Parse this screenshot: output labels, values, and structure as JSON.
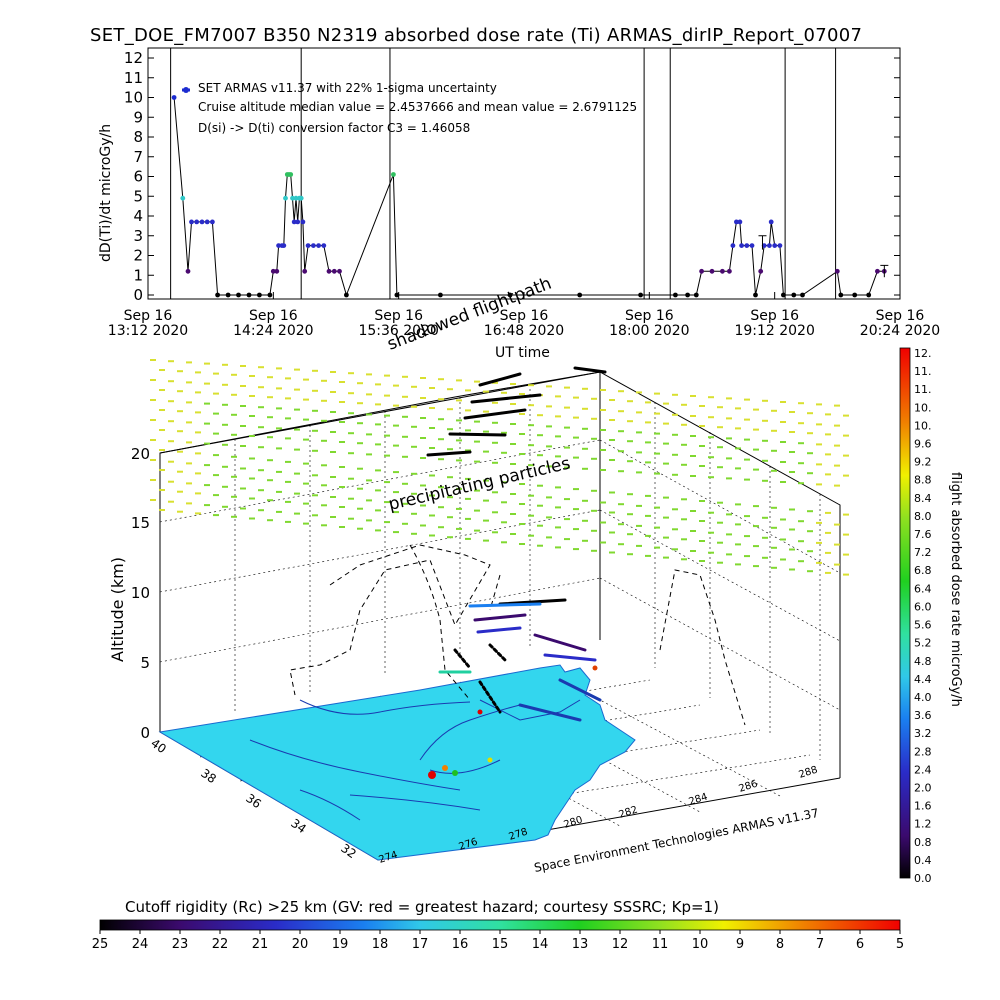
{
  "header": {
    "title": "SET_DOE_FM7007   B350   N2319  absorbed dose rate (Ti) ARMAS_dirIP_Report_07007"
  },
  "top_panel": {
    "annotations": [
      "SET ARMAS v11.37 with 22% 1-sigma uncertainty",
      "Cruise altitude median value = 2.4537666 and mean value = 2.6791125",
      "D(si) -> D(ti) conversion factor C3 = 1.46058"
    ]
  },
  "globe": {
    "shadowed_label": "shadowed flightpath",
    "precip_label": "precipitating particles",
    "credit": "Space Environment Technologies ARMAS v11.37",
    "z_axis_label": "Altitude (km)",
    "z_ticks": [
      "0",
      "5",
      "10",
      "15",
      "20"
    ],
    "lat_ticks": [
      "40",
      "38",
      "36",
      "34",
      "32"
    ],
    "lon_ticks": [
      "274",
      "276",
      "278",
      "280",
      "282",
      "284",
      "286",
      "288"
    ]
  },
  "colorbar_right": {
    "label": "flight absorbed dose rate microGy/h",
    "ticks": [
      "0.0",
      "0.4",
      "0.8",
      "1.2",
      "1.6",
      "2.0",
      "2.4",
      "2.8",
      "3.2",
      "3.6",
      "4.0",
      "4.4",
      "4.8",
      "5.2",
      "5.6",
      "6.0",
      "6.4",
      "6.8",
      "7.2",
      "7.6",
      "8.0",
      "8.4",
      "8.8",
      "9.2",
      "9.6",
      "10.",
      "10.",
      "11.",
      "11.",
      "12."
    ]
  },
  "colorbar_bottom": {
    "title": "Cutoff rigidity (Rc) >25 km (GV: red = greatest hazard; courtesy SSSRC; Kp=1)",
    "ticks": [
      "25",
      "24",
      "23",
      "22",
      "21",
      "20",
      "19",
      "18",
      "17",
      "16",
      "15",
      "14",
      "13",
      "12",
      "11",
      "10",
      "9",
      "8",
      "7",
      "6",
      "5"
    ]
  },
  "chart_data": [
    {
      "type": "scatter",
      "xlabel": "UT time",
      "ylabel": "dD(Ti)/dt microGy/h",
      "ylim": [
        0,
        12
      ],
      "yticks": [
        "0",
        "1",
        "2",
        "3",
        "4",
        "5",
        "6",
        "7",
        "8",
        "9",
        "10",
        "11",
        "12"
      ],
      "xticks": [
        {
          "line1": "Sep 16",
          "line2": "13:12 2020"
        },
        {
          "line1": "Sep 16",
          "line2": "14:24 2020"
        },
        {
          "line1": "Sep 16",
          "line2": "15:36 2020"
        },
        {
          "line1": "Sep 16",
          "line2": "16:48 2020"
        },
        {
          "line1": "Sep 16",
          "line2": "18:00 2020"
        },
        {
          "line1": "Sep 16",
          "line2": "19:12 2020"
        },
        {
          "line1": "Sep 16",
          "line2": "20:24 2020"
        }
      ],
      "xlim_minutes": [
        792,
        1224
      ],
      "vertical_lines_minutes": [
        805,
        880,
        931,
        1077,
        1092,
        1158,
        1187
      ],
      "series": [
        {
          "points": [
            {
              "t": 807,
              "v": 10.0
            },
            {
              "t": 812,
              "v": 4.9
            },
            {
              "t": 815,
              "v": 1.2
            },
            {
              "t": 817,
              "v": 3.7
            },
            {
              "t": 820,
              "v": 3.7
            },
            {
              "t": 823,
              "v": 3.7
            },
            {
              "t": 826,
              "v": 3.7
            },
            {
              "t": 829,
              "v": 3.7
            },
            {
              "t": 832,
              "v": 0
            },
            {
              "t": 838,
              "v": 0
            },
            {
              "t": 844,
              "v": 0
            },
            {
              "t": 850,
              "v": 0
            },
            {
              "t": 856,
              "v": 0
            },
            {
              "t": 862,
              "v": 0
            },
            {
              "t": 864,
              "v": 1.2
            },
            {
              "t": 866,
              "v": 1.2
            },
            {
              "t": 867,
              "v": 2.5
            },
            {
              "t": 869,
              "v": 2.5
            },
            {
              "t": 870,
              "v": 2.5
            },
            {
              "t": 871,
              "v": 4.9
            },
            {
              "t": 872,
              "v": 6.1
            },
            {
              "t": 873,
              "v": 6.1
            },
            {
              "t": 874,
              "v": 6.1
            },
            {
              "t": 875,
              "v": 4.9
            },
            {
              "t": 876,
              "v": 3.7
            },
            {
              "t": 877,
              "v": 4.9
            },
            {
              "t": 878,
              "v": 3.7
            },
            {
              "t": 879,
              "v": 4.9
            },
            {
              "t": 880,
              "v": 4.9
            },
            {
              "t": 881,
              "v": 3.7
            },
            {
              "t": 882,
              "v": 1.2
            },
            {
              "t": 884,
              "v": 2.5
            },
            {
              "t": 887,
              "v": 2.5
            },
            {
              "t": 890,
              "v": 2.5
            },
            {
              "t": 893,
              "v": 2.5
            },
            {
              "t": 896,
              "v": 1.2
            },
            {
              "t": 899,
              "v": 1.2
            },
            {
              "t": 902,
              "v": 1.2
            },
            {
              "t": 906,
              "v": 0
            },
            {
              "t": 933,
              "v": 6.1
            },
            {
              "t": 935,
              "v": 0
            },
            {
              "t": 960,
              "v": 0
            },
            {
              "t": 1000,
              "v": 0
            },
            {
              "t": 1040,
              "v": 0
            },
            {
              "t": 1075,
              "v": 0
            },
            {
              "t": 1095,
              "v": 0
            },
            {
              "t": 1102,
              "v": 0
            },
            {
              "t": 1107,
              "v": 0
            },
            {
              "t": 1110,
              "v": 1.2
            },
            {
              "t": 1116,
              "v": 1.2
            },
            {
              "t": 1122,
              "v": 1.2
            },
            {
              "t": 1126,
              "v": 1.2
            },
            {
              "t": 1128,
              "v": 2.5
            },
            {
              "t": 1130,
              "v": 3.7
            },
            {
              "t": 1132,
              "v": 3.7
            },
            {
              "t": 1133,
              "v": 2.5
            },
            {
              "t": 1136,
              "v": 2.5
            },
            {
              "t": 1139,
              "v": 2.5
            },
            {
              "t": 1141,
              "v": 0
            },
            {
              "t": 1144,
              "v": 1.2
            },
            {
              "t": 1146,
              "v": 2.5
            },
            {
              "t": 1149,
              "v": 2.5
            },
            {
              "t": 1150,
              "v": 3.7
            },
            {
              "t": 1152,
              "v": 2.5
            },
            {
              "t": 1155,
              "v": 2.5
            },
            {
              "t": 1157,
              "v": 0
            },
            {
              "t": 1163,
              "v": 0
            },
            {
              "t": 1168,
              "v": 0
            },
            {
              "t": 1188,
              "v": 1.2
            },
            {
              "t": 1190,
              "v": 0
            },
            {
              "t": 1198,
              "v": 0
            },
            {
              "t": 1206,
              "v": 0
            },
            {
              "t": 1211,
              "v": 1.2
            },
            {
              "t": 1215,
              "v": 1.2
            }
          ]
        }
      ]
    }
  ]
}
